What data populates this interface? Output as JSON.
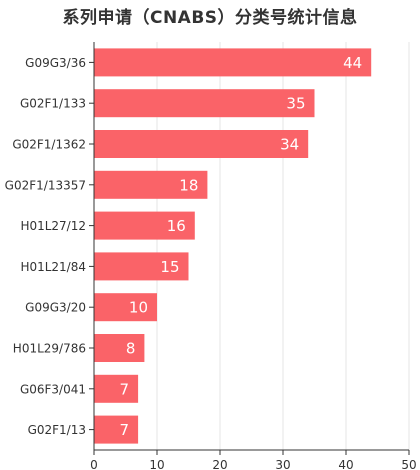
{
  "chart_data": {
    "type": "bar",
    "orientation": "horizontal",
    "title": "系列申请（CNABS）分类号统计信息",
    "categories": [
      "G09G3/36",
      "G02F1/133",
      "G02F1/1362",
      "G02F1/13357",
      "H01L27/12",
      "H01L21/84",
      "G09G3/20",
      "H01L29/786",
      "G06F3/041",
      "G02F1/13"
    ],
    "values": [
      44,
      35,
      34,
      18,
      16,
      15,
      10,
      8,
      7,
      7
    ],
    "xlim": [
      0,
      50
    ],
    "xticks": [
      0,
      10,
      20,
      30,
      40,
      50
    ],
    "xlabel": "",
    "ylabel": "",
    "grid": "vertical",
    "bar_color": "#fa6368",
    "grid_color": "#e6e6e6",
    "axis_color": "#333333"
  }
}
